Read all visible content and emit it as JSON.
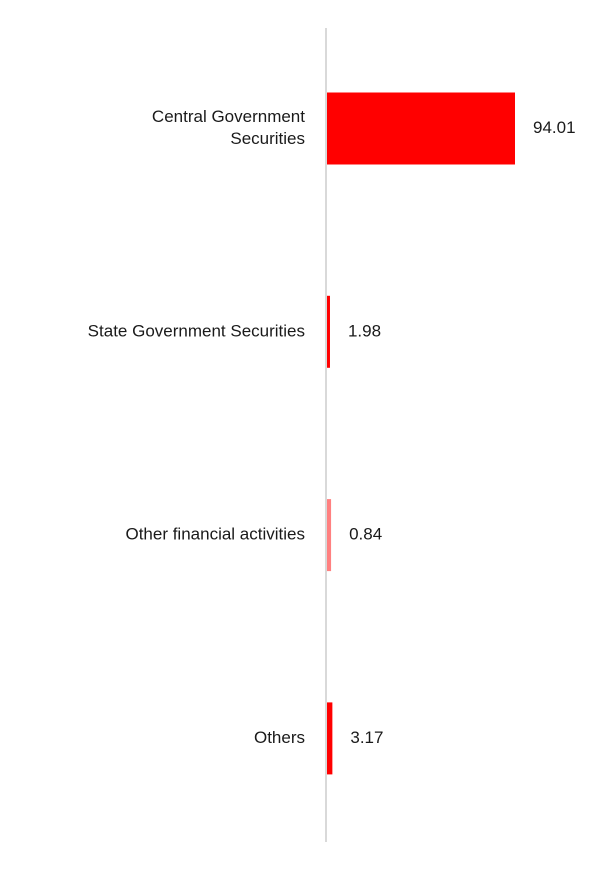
{
  "chart_data": {
    "type": "bar",
    "orientation": "horizontal",
    "categories": [
      [
        "Central Government",
        "Securities"
      ],
      [
        "State Government Securities"
      ],
      [
        "Other financial activities"
      ],
      [
        "Others"
      ]
    ],
    "values": [
      94.01,
      1.98,
      0.84,
      3.17
    ],
    "value_labels": [
      "94.01",
      "1.98",
      "0.84",
      "3.17"
    ],
    "title": "",
    "xlabel": "",
    "ylabel": "",
    "xlim": [
      0,
      94.01
    ],
    "grid": false,
    "legend": "none",
    "colors": {
      "bar": "#ff0000",
      "bar_small": "#ff8080",
      "axis": "#d9d9d9",
      "text": "#1a1a1a"
    }
  }
}
